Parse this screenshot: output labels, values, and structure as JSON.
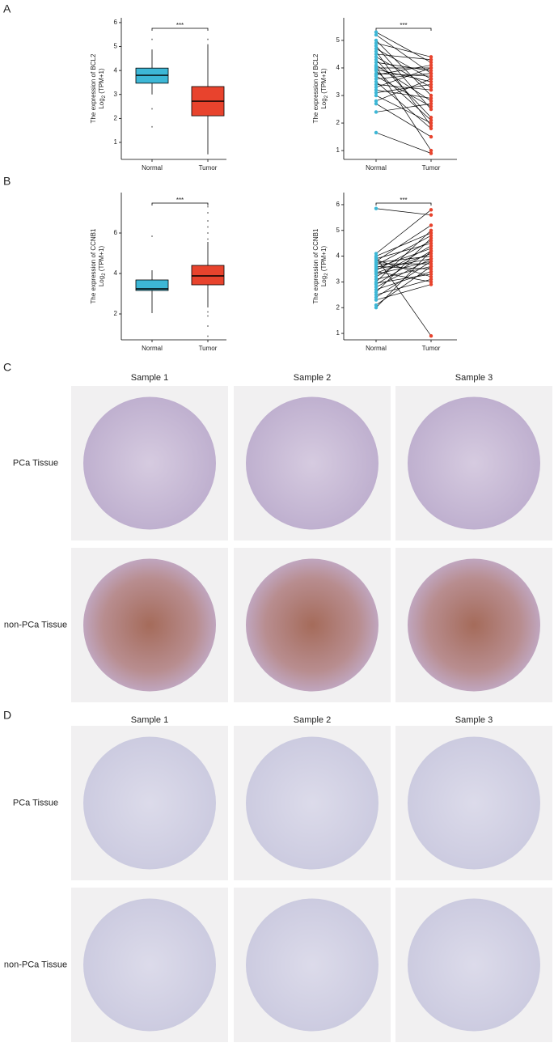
{
  "panel_labels": [
    "A",
    "B",
    "C",
    "D"
  ],
  "chart_data": [
    {
      "type": "box",
      "categories": [
        "Normal",
        "Tumor"
      ],
      "ylabel": "The expression of BCL2",
      "ylabel_unit": {
        "base": "Log",
        "sub": "2",
        "rest": " (TPM+1)"
      },
      "annotation": "***",
      "ylim": [
        0.29,
        6.2
      ],
      "yticks": [
        1,
        2,
        3,
        4,
        5,
        6
      ],
      "boxes": [
        {
          "color": "#3db7d6",
          "whisker_low": 3.0,
          "q1": 3.47,
          "median": 3.8,
          "q3": 4.1,
          "whisker_high": 4.88,
          "outliers": [
            5.3,
            2.4,
            1.65
          ]
        },
        {
          "color": "#e8432d",
          "whisker_low": 0.5,
          "q1": 2.11,
          "median": 2.72,
          "q3": 3.33,
          "whisker_high": 5.1,
          "outliers": [
            5.3
          ]
        }
      ]
    },
    {
      "type": "paired",
      "categories": [
        "Normal",
        "Tumor"
      ],
      "ylabel": "The expression of BCL2",
      "ylabel_unit": {
        "base": "Log",
        "sub": "2",
        "rest": " (TPM+1)"
      },
      "annotation": "***",
      "ylim": [
        0.68,
        5.82
      ],
      "yticks": [
        1,
        2,
        3,
        4,
        5
      ],
      "groups": [
        {
          "color": "#3db7d6",
          "values": [
            5.3,
            5.2,
            5.0,
            4.9,
            4.8,
            4.7,
            4.6,
            4.5,
            4.4,
            4.3,
            4.2,
            4.1,
            4.05,
            4.0,
            3.95,
            3.9,
            3.8,
            3.75,
            3.7,
            3.6,
            3.5,
            3.4,
            3.3,
            3.2,
            3.1,
            3.0,
            2.8,
            2.7,
            2.4,
            1.65
          ]
        },
        {
          "color": "#e8432d",
          "values": [
            4.2,
            3.8,
            3.0,
            4.4,
            2.5,
            3.6,
            1.9,
            4.3,
            3.3,
            2.2,
            3.9,
            2.8,
            1.0,
            4.0,
            3.5,
            2.1,
            3.7,
            4.1,
            2.6,
            3.8,
            1.8,
            3.2,
            4.0,
            2.9,
            3.4,
            2.0,
            3.6,
            1.5,
            2.7,
            0.9
          ]
        }
      ]
    },
    {
      "type": "box",
      "categories": [
        "Normal",
        "Tumor"
      ],
      "ylabel": "The expression of CCNB1",
      "ylabel_unit": {
        "base": "Log",
        "sub": "2",
        "rest": " (TPM+1)"
      },
      "annotation": "***",
      "ylim": [
        0.72,
        8.0
      ],
      "yticks": [
        2,
        4,
        6
      ],
      "boxes": [
        {
          "color": "#3db7d6",
          "whisker_low": 2.04,
          "q1": 3.16,
          "median": 3.24,
          "q3": 3.68,
          "whisker_high": 4.16,
          "outliers": [
            5.84
          ]
        },
        {
          "color": "#e8432d",
          "whisker_low": 2.32,
          "q1": 3.44,
          "median": 3.88,
          "q3": 4.4,
          "whisker_high": 5.56,
          "outliers": [
            5.7,
            6.0,
            6.3,
            6.6,
            7.0,
            7.3,
            2.1,
            1.9,
            1.4,
            0.9
          ]
        }
      ]
    },
    {
      "type": "paired",
      "categories": [
        "Normal",
        "Tumor"
      ],
      "ylabel": "The expression of CCNB1",
      "ylabel_unit": {
        "base": "Log",
        "sub": "2",
        "rest": " (TPM+1)"
      },
      "annotation": "***",
      "ylim": [
        0.75,
        6.47
      ],
      "yticks": [
        1,
        2,
        3,
        4,
        5,
        6
      ],
      "groups": [
        {
          "color": "#3db7d6",
          "values": [
            5.85,
            4.1,
            4.0,
            3.95,
            3.9,
            3.85,
            3.8,
            3.75,
            3.7,
            3.65,
            3.6,
            3.55,
            3.5,
            3.45,
            3.4,
            3.35,
            3.3,
            3.2,
            3.1,
            3.0,
            2.95,
            2.9,
            2.8,
            2.7,
            2.6,
            2.5,
            2.4,
            2.3,
            2.1,
            2.0
          ]
        },
        {
          "color": "#e8432d",
          "values": [
            5.6,
            5.8,
            4.9,
            0.9,
            4.5,
            3.2,
            5.2,
            4.0,
            3.7,
            4.8,
            3.5,
            4.3,
            3.9,
            4.6,
            3.0,
            4.1,
            3.8,
            4.4,
            3.6,
            5.0,
            3.3,
            4.2,
            3.9,
            3.4,
            4.7,
            3.1,
            3.8,
            2.9,
            3.6,
            4.2
          ]
        }
      ]
    }
  ],
  "ihc": [
    {
      "columns": [
        "Sample 1",
        "Sample 2",
        "Sample 3"
      ],
      "rows": [
        "PCa Tissue",
        "non-PCa Tissue"
      ]
    },
    {
      "columns": [
        "Sample 1",
        "Sample 2",
        "Sample 3"
      ],
      "rows": [
        "PCa Tissue",
        "non-PCa Tissue"
      ]
    }
  ]
}
